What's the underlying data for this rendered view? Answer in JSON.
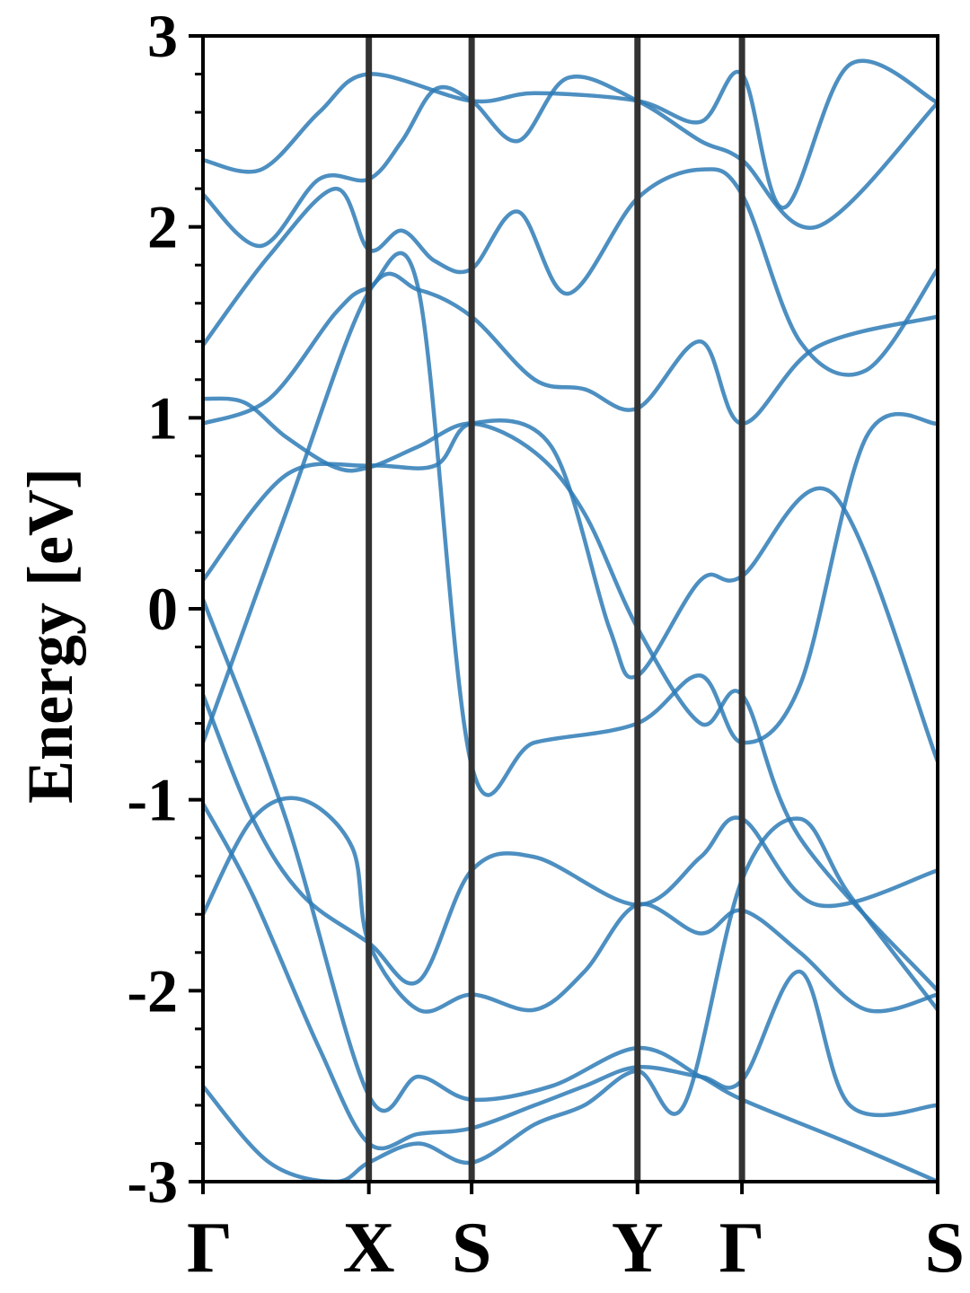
{
  "chart_data": {
    "type": "line",
    "title": "",
    "xlabel": "",
    "ylabel": "Energy [eV]",
    "ylim": [
      -3,
      3
    ],
    "y_ticks": [
      {
        "value": 3,
        "label": "3"
      },
      {
        "value": 2,
        "label": "2"
      },
      {
        "value": 1,
        "label": "1"
      },
      {
        "value": 0,
        "label": "0"
      },
      {
        "value": -1,
        "label": "-1"
      },
      {
        "value": -2,
        "label": "-2"
      },
      {
        "value": -3,
        "label": "-3"
      }
    ],
    "y_minor_step": 0.2,
    "kpath": [
      {
        "label": "Γ",
        "position": 0.0
      },
      {
        "label": "X",
        "position": 1.0
      },
      {
        "label": "S",
        "position": 1.62
      },
      {
        "label": "Y",
        "position": 2.62
      },
      {
        "label": "Γ",
        "position": 3.25
      },
      {
        "label": "S",
        "position": 4.43
      }
    ],
    "xlim": [
      0,
      4.43
    ],
    "line_color": "#2e7bb6",
    "divider_color": "#333333",
    "grid": false,
    "legend": "none",
    "series": [
      {
        "x": [
          0,
          0.5,
          1.0,
          1.3,
          1.62,
          2.1,
          2.62,
          3.0,
          3.25,
          3.9,
          4.43
        ],
        "values": [
          0.05,
          -1.1,
          -2.55,
          -2.45,
          -2.57,
          -2.5,
          -2.3,
          -2.45,
          -2.57,
          -2.8,
          -3.0
        ]
      },
      {
        "x": [
          0,
          0.3,
          0.6,
          1.0,
          1.3,
          1.62,
          2.0,
          2.62,
          3.0,
          3.25,
          3.7,
          4.43
        ],
        "values": [
          -0.45,
          -1.1,
          -1.5,
          -1.75,
          -1.95,
          -1.37,
          -1.3,
          -1.55,
          -1.3,
          -1.1,
          -1.55,
          -1.37
        ]
      },
      {
        "x": [
          0,
          0.5,
          1.0,
          1.4,
          1.62,
          2.1,
          2.45,
          2.62,
          3.0,
          3.25,
          3.8,
          4.43
        ],
        "values": [
          0.15,
          0.7,
          0.75,
          0.75,
          0.97,
          0.85,
          -0.1,
          -0.35,
          0.15,
          0.17,
          0.6,
          -0.8
        ]
      },
      {
        "x": [
          0,
          0.4,
          0.8,
          1.0,
          1.3,
          1.62,
          2.0,
          2.62,
          3.0,
          3.25,
          3.6,
          4.0,
          4.43
        ],
        "values": [
          0.97,
          1.1,
          1.55,
          1.68,
          1.67,
          -0.82,
          -0.7,
          -0.6,
          -0.35,
          -0.7,
          -0.4,
          0.9,
          0.97
        ]
      },
      {
        "x": [
          0,
          0.5,
          1.0,
          1.3,
          1.62,
          2.0,
          2.3,
          2.62,
          3.0,
          3.25,
          3.7,
          4.43
        ],
        "values": [
          -0.7,
          0.5,
          1.66,
          1.67,
          1.53,
          1.2,
          1.15,
          1.05,
          1.4,
          0.97,
          1.37,
          1.53
        ]
      },
      {
        "x": [
          0,
          0.25,
          0.5,
          0.8,
          1.0,
          1.3,
          1.62,
          2.0,
          2.3,
          2.62,
          3.0,
          3.25,
          3.6,
          4.43
        ],
        "values": [
          1.1,
          1.08,
          0.9,
          0.74,
          0.74,
          0.85,
          0.97,
          0.82,
          0.5,
          -0.1,
          -0.6,
          -0.45,
          -1.2,
          -2.0
        ]
      },
      {
        "x": [
          0,
          0.4,
          0.8,
          1.0,
          1.2,
          1.4,
          1.62,
          1.9,
          2.2,
          2.62,
          3.0,
          3.25,
          3.6,
          4.0,
          4.43
        ],
        "values": [
          1.38,
          1.85,
          2.2,
          1.88,
          1.98,
          1.82,
          1.78,
          2.08,
          1.65,
          2.15,
          2.3,
          2.17,
          1.4,
          1.25,
          1.78
        ]
      },
      {
        "x": [
          0,
          0.35,
          0.7,
          1.0,
          1.2,
          1.4,
          1.62,
          1.9,
          2.2,
          2.62,
          3.0,
          3.25,
          3.7,
          4.43
        ],
        "values": [
          2.17,
          1.9,
          2.25,
          2.25,
          2.45,
          2.72,
          2.66,
          2.45,
          2.78,
          2.66,
          2.45,
          2.35,
          2.0,
          2.65
        ]
      },
      {
        "x": [
          0,
          0.35,
          0.7,
          1.0,
          1.62,
          2.0,
          2.62,
          3.0,
          3.25,
          3.5,
          3.9,
          4.43
        ],
        "values": [
          2.35,
          2.3,
          2.6,
          2.8,
          2.66,
          2.7,
          2.66,
          2.55,
          2.8,
          2.1,
          2.85,
          2.65
        ]
      },
      {
        "x": [
          0,
          0.3,
          0.6,
          0.9,
          1.0,
          1.3,
          1.62,
          2.0,
          2.3,
          2.62,
          3.0,
          3.25,
          3.6,
          4.0,
          4.43
        ],
        "values": [
          -1.6,
          -1.1,
          -1.0,
          -1.25,
          -1.75,
          -2.1,
          -2.02,
          -2.1,
          -1.9,
          -1.55,
          -1.7,
          -1.58,
          -1.8,
          -2.1,
          -2.02
        ]
      },
      {
        "x": [
          0,
          0.3,
          0.7,
          1.0,
          1.3,
          1.62,
          2.0,
          2.3,
          2.62,
          3.0,
          3.25,
          3.6,
          3.9,
          4.43
        ],
        "values": [
          -1.02,
          -1.5,
          -2.3,
          -2.8,
          -2.75,
          -2.72,
          -2.6,
          -2.5,
          -2.4,
          -2.45,
          -2.47,
          -1.9,
          -2.6,
          -2.6
        ]
      },
      {
        "x": [
          0,
          0.4,
          0.8,
          1.0,
          1.3,
          1.62,
          2.0,
          2.3,
          2.62,
          2.9,
          3.25,
          3.6,
          3.9,
          4.43
        ],
        "values": [
          -2.5,
          -2.9,
          -3.0,
          -2.9,
          -2.8,
          -2.9,
          -2.7,
          -2.6,
          -2.42,
          -2.6,
          -1.42,
          -1.1,
          -1.5,
          -2.1
        ]
      }
    ]
  }
}
